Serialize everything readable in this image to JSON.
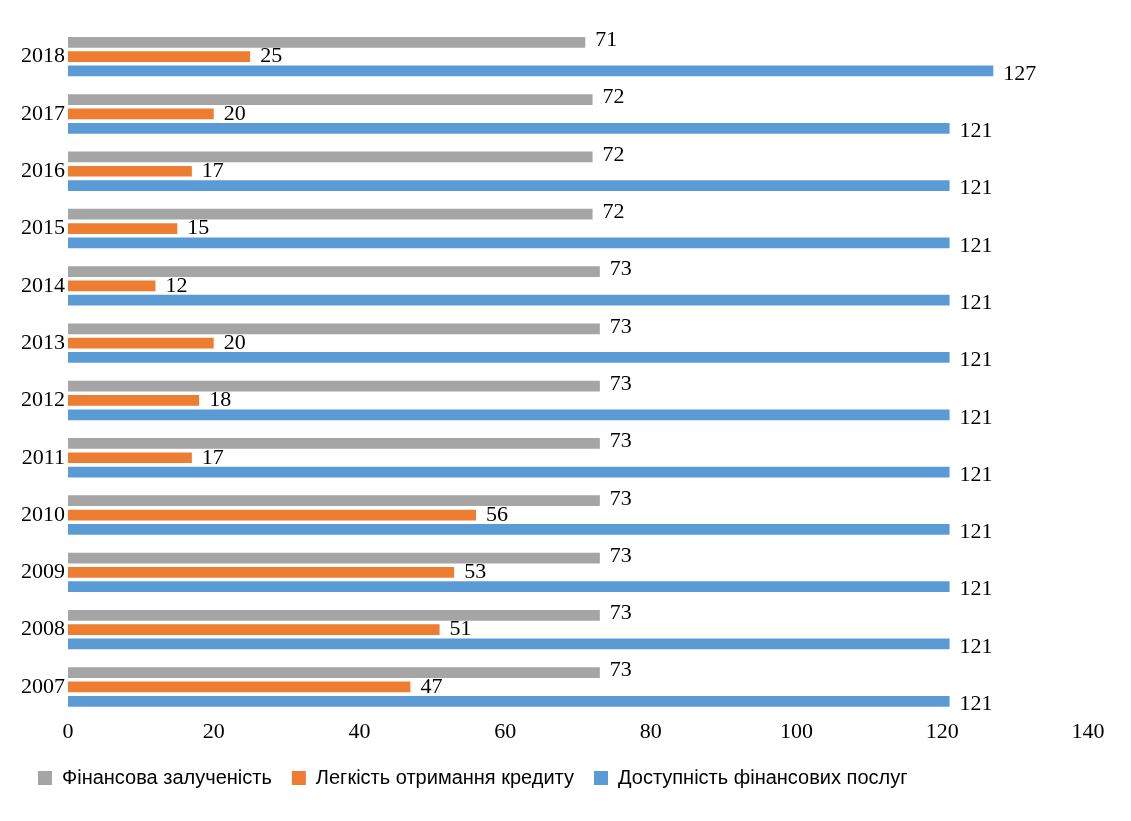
{
  "chart_data": {
    "type": "bar",
    "orientation": "horizontal",
    "categories": [
      "2018",
      "2017",
      "2016",
      "2015",
      "2014",
      "2013",
      "2012",
      "2011",
      "2010",
      "2009",
      "2008",
      "2007"
    ],
    "series": [
      {
        "name": "Фінансова залученість",
        "color": "#a5a5a5",
        "values": [
          71,
          72,
          72,
          72,
          73,
          73,
          73,
          73,
          73,
          73,
          73,
          73
        ]
      },
      {
        "name": "Легкість отримання кредиту",
        "color": "#ed7d31",
        "values": [
          25,
          20,
          17,
          15,
          12,
          20,
          18,
          17,
          56,
          53,
          51,
          47
        ]
      },
      {
        "name": "Доступність фінансових послуг",
        "color": "#5b9bd5",
        "values": [
          127,
          121,
          121,
          121,
          121,
          121,
          121,
          121,
          121,
          121,
          121,
          121
        ]
      }
    ],
    "xlim": [
      0,
      140
    ],
    "xticks": [
      0,
      20,
      40,
      60,
      80,
      100,
      120,
      140
    ],
    "grid": false,
    "legend": "bottom",
    "data_labels": true
  }
}
